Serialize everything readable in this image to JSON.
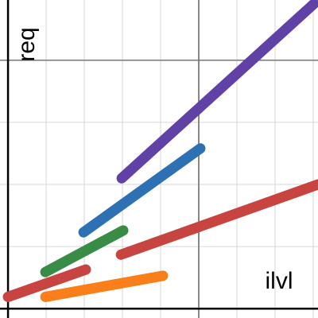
{
  "chart_data": {
    "type": "line",
    "xlabel": "ilvl",
    "ylabel": "req",
    "xlim": [
      -0.21,
      8.125
    ],
    "ylim": [
      -0.15,
      4.97
    ],
    "xticks": [
      0,
      1,
      2,
      3,
      4,
      5,
      6,
      7,
      8
    ],
    "yticks": [
      0,
      1,
      2,
      3,
      4
    ],
    "major_xticks": [
      5
    ],
    "major_yticks": [
      4
    ],
    "grid": true,
    "series": [
      {
        "color": "#6042a6",
        "x": [
          2.98,
          8.02
        ],
        "values": [
          2.1,
          4.91
        ]
      },
      {
        "color": "#2d70b3",
        "x": [
          1.98,
          5.04
        ],
        "values": [
          1.23,
          2.58
        ]
      },
      {
        "color": "#388c46",
        "x": [
          0.98,
          3.02
        ],
        "values": [
          0.59,
          1.26
        ]
      },
      {
        "color": "#c74440",
        "x": [
          2.96,
          8.125
        ],
        "values": [
          0.87,
          2.0
        ]
      },
      {
        "color": "#c74440",
        "x": [
          0,
          2.04
        ],
        "values": [
          0.19,
          0.63
        ]
      },
      {
        "color": "#fa7e19",
        "x": [
          0.98,
          4.06
        ],
        "values": [
          0.19,
          0.53
        ]
      }
    ]
  }
}
